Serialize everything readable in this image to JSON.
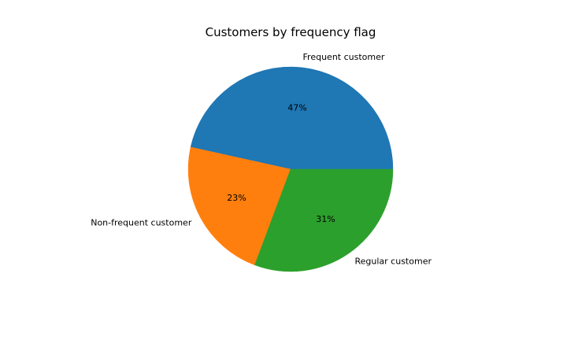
{
  "chart_data": {
    "type": "pie",
    "title": "Customers by frequency flag",
    "labels": [
      "Frequent customer",
      "Non-frequent customer",
      "Regular customer"
    ],
    "values": [
      47,
      23,
      31
    ],
    "percent_labels": [
      "47%",
      "23%",
      "31%"
    ],
    "colors": [
      "#1f77b4",
      "#ff7f0e",
      "#2ca02c"
    ],
    "start_angle": "0 degrees (east)",
    "direction": "counterclockwise",
    "legend": "none"
  }
}
